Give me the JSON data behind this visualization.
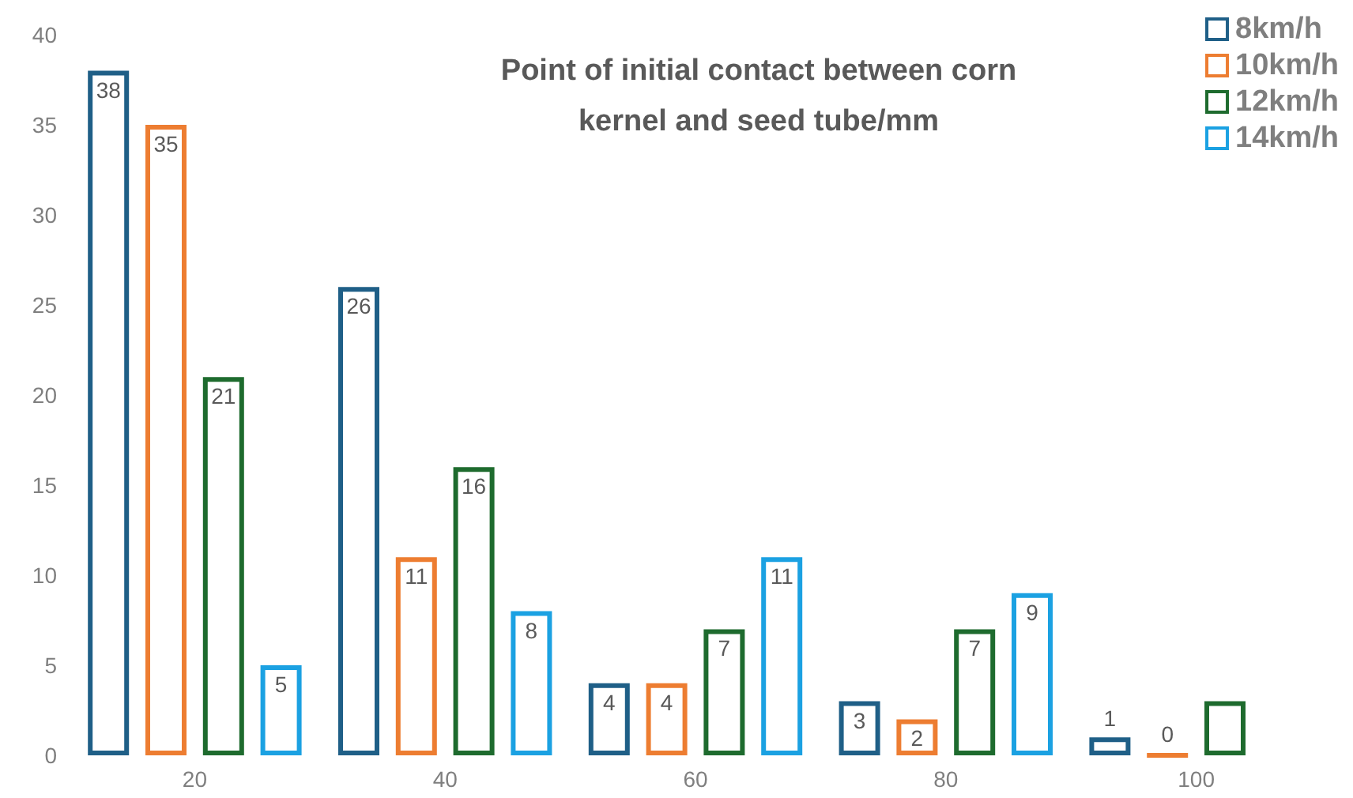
{
  "chart_data": {
    "type": "bar",
    "title": "Point of initial contact between corn\nkernel and seed tube/mm",
    "categories": [
      "20",
      "40",
      "60",
      "80",
      "100"
    ],
    "series": [
      {
        "name": "8km/h",
        "color": "#1f5f87",
        "values": [
          38,
          26,
          4,
          3,
          1
        ],
        "value_labels": [
          "38",
          "26",
          "4",
          "3",
          "1"
        ]
      },
      {
        "name": "10km/h",
        "color": "#ed7d31",
        "values": [
          35,
          11,
          4,
          2,
          0
        ],
        "value_labels": [
          "35",
          "11",
          "4",
          "2",
          "0"
        ]
      },
      {
        "name": "12km/h",
        "color": "#1e6b2e",
        "values": [
          21,
          16,
          7,
          7,
          3
        ],
        "value_labels": [
          "21",
          "16",
          "7",
          "7",
          null
        ]
      },
      {
        "name": "14km/h",
        "color": "#1ba1e2",
        "values": [
          5,
          8,
          11,
          9,
          null
        ],
        "value_labels": [
          "5",
          "8",
          "11",
          "9",
          null
        ]
      }
    ],
    "ylim": [
      0,
      40
    ],
    "yticks": [
      0,
      5,
      10,
      15,
      20,
      25,
      30,
      35,
      40
    ],
    "grid": false,
    "legend": "top right"
  }
}
